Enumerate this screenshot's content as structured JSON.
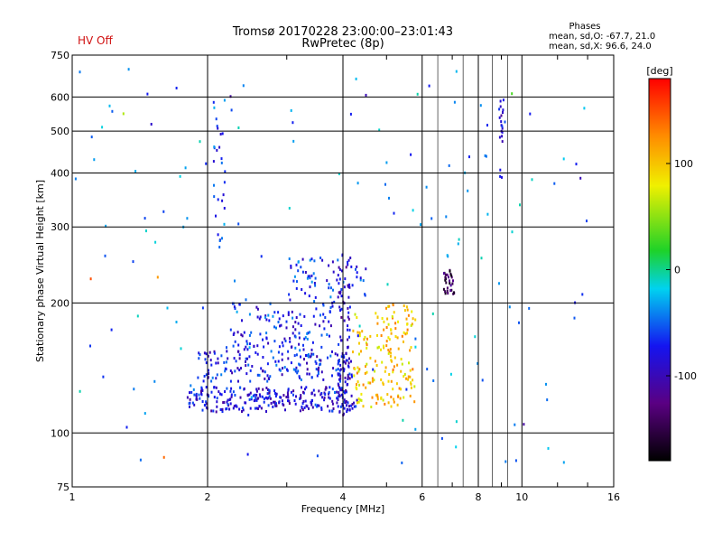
{
  "chart_data": {
    "type": "scatter",
    "title": "Tromsø 20170228 23:00:00–23:01:43",
    "subtitle": "RwPretec (8p)",
    "status": "HV Off",
    "stats": {
      "header": "Phases",
      "line_o": "mean, sd,O:  -67.7, 21.0",
      "line_x": "mean, sd,X:  96.6, 24.0"
    },
    "xlabel": "Frequency [MHz]",
    "ylabel": "Stationary phase Virtual Height [km]",
    "xscale": "log",
    "yscale": "log",
    "xlim": [
      1,
      16
    ],
    "ylim": [
      75,
      750
    ],
    "xticks": [
      1,
      2,
      4,
      6,
      8,
      10,
      16
    ],
    "xtick_labels": [
      "1",
      "2",
      "4",
      "6",
      "8",
      "10",
      "16"
    ],
    "yticks": [
      75,
      100,
      200,
      300,
      400,
      500,
      600,
      750
    ],
    "ytick_labels": [
      "75",
      "100",
      "200",
      "300",
      "400",
      "500",
      "600",
      "750"
    ],
    "colorbar": {
      "label": "[deg]",
      "range": [
        -180,
        180
      ],
      "ticks": [
        100,
        0,
        -100
      ],
      "tick_labels": [
        "100",
        "0",
        "-100"
      ]
    },
    "point_summary": "Several thousand echoes; main trace 1.8–6 MHz at 110–250 km",
    "clusters": [
      {
        "name": "O-trace low band",
        "x": [
          1.8,
          4.3
        ],
        "y": [
          112,
          128
        ],
        "phase": -85,
        "n": 260
      },
      {
        "name": "O-trace 140 km band",
        "x": [
          1.9,
          4.2
        ],
        "y": [
          132,
          155
        ],
        "phase": -75,
        "n": 170
      },
      {
        "name": "O-trace rising",
        "x": [
          2.2,
          3.8
        ],
        "y": [
          155,
          200
        ],
        "phase": -70,
        "n": 120
      },
      {
        "name": "O-trace upper",
        "x": [
          3.0,
          4.5
        ],
        "y": [
          200,
          255
        ],
        "phase": -65,
        "n": 70
      },
      {
        "name": "X-trace",
        "x": [
          4.2,
          5.8
        ],
        "y": [
          115,
          200
        ],
        "phase": 100,
        "n": 180
      },
      {
        "name": "Dense 4 MHz column",
        "x": [
          3.9,
          4.15
        ],
        "y": [
          110,
          260
        ],
        "phase": -90,
        "n": 90
      },
      {
        "name": "Purple column 7 MHz",
        "x": [
          6.7,
          7.1
        ],
        "y": [
          210,
          240
        ],
        "phase": -145,
        "n": 30
      },
      {
        "name": "Column 2.1 MHz",
        "x": [
          2.05,
          2.2
        ],
        "y": [
          250,
          600
        ],
        "phase": -60,
        "n": 30
      },
      {
        "name": "Column 9 MHz",
        "x": [
          8.9,
          9.1
        ],
        "y": [
          360,
          600
        ],
        "phase": -95,
        "n": 20
      },
      {
        "name": "Scatter high",
        "x": [
          1.0,
          14.0
        ],
        "y": [
          80,
          700
        ],
        "phase": -40,
        "n": 140
      }
    ],
    "sample_points": [
      {
        "x": 1.1,
        "y": 228,
        "phase": 150
      },
      {
        "x": 1.3,
        "y": 550,
        "phase": 60
      },
      {
        "x": 1.5,
        "y": 520,
        "phase": -90
      },
      {
        "x": 1.55,
        "y": 230,
        "phase": 120
      },
      {
        "x": 1.6,
        "y": 88,
        "phase": 140
      },
      {
        "x": 2.25,
        "y": 603,
        "phase": -110
      },
      {
        "x": 4.5,
        "y": 607,
        "phase": -100
      },
      {
        "x": 9.5,
        "y": 612,
        "phase": 30
      },
      {
        "x": 10.1,
        "y": 105,
        "phase": -110
      },
      {
        "x": 13.5,
        "y": 390,
        "phase": -100
      }
    ]
  }
}
